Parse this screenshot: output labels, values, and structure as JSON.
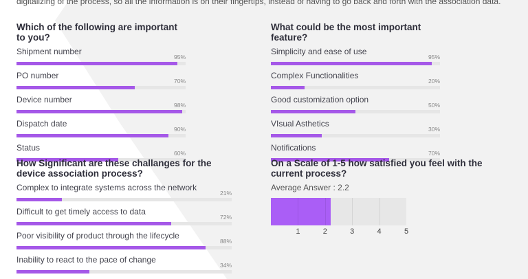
{
  "intro_text": "digitalizing of the process, so all the information is on their fingertips, instead of having to go back and forth with the association data.",
  "accent_color": "#a558e8",
  "sections": {
    "important": {
      "title": "Which of the following are important to you?",
      "items": [
        {
          "label": "Shipment number",
          "percent_label": "95%",
          "value": 95
        },
        {
          "label": "PO number",
          "percent_label": "70%",
          "value": 70
        },
        {
          "label": "Device number",
          "percent_label": "98%",
          "value": 98
        },
        {
          "label": "Dispatch date",
          "percent_label": "90%",
          "value": 90
        },
        {
          "label": "Status",
          "percent_label": "60%",
          "value": 60
        }
      ]
    },
    "feature": {
      "title": "What could be the most important feature?",
      "items": [
        {
          "label": "Simplicity and ease of use",
          "percent_label": "95%",
          "value": 95
        },
        {
          "label": "Complex Functionalities",
          "percent_label": "20%",
          "value": 20
        },
        {
          "label": "Good customization option",
          "percent_label": "50%",
          "value": 50
        },
        {
          "label": "VIsual Asthetics",
          "percent_label": "30%",
          "value": 30
        },
        {
          "label": "Notifications",
          "percent_label": "70%",
          "value": 70
        }
      ]
    },
    "challenges": {
      "title": "How Significant are these challanges for the device association process?",
      "items": [
        {
          "label": "Complex to integrate systems across the network",
          "percent_label": "21%",
          "value": 21
        },
        {
          "label": "Difficult to get timely access to data",
          "percent_label": "72%",
          "value": 72
        },
        {
          "label": "Poor visibility of product through the lifecycle",
          "percent_label": "88%",
          "value": 88
        },
        {
          "label": "Inability to react to the pace of change",
          "percent_label": "34%",
          "value": 34
        }
      ]
    },
    "satisfaction": {
      "title": "On a Scale of 1-5 how satisfied you feel with the current process?",
      "average_label": "Average Answer : 2.2",
      "average_value": 2.2,
      "scale_max": 5,
      "ticks": [
        "1",
        "2",
        "3",
        "4",
        "5"
      ]
    }
  }
}
